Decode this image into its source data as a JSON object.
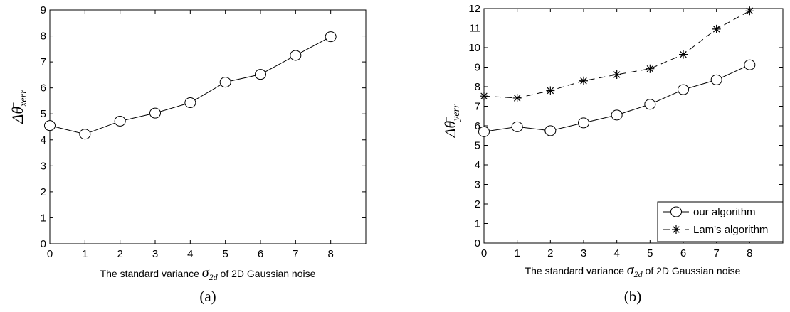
{
  "chart_data": [
    {
      "type": "line",
      "caption": "(a)",
      "xlabel": "The standard variance σ2d of 2D Gaussian noise",
      "ylabel": "Δθ̄xerr",
      "xlim": [
        0,
        9
      ],
      "ylim": [
        0,
        9
      ],
      "xticks": [
        0,
        1,
        2,
        3,
        4,
        5,
        6,
        7,
        8
      ],
      "yticks": [
        0,
        1,
        2,
        3,
        4,
        5,
        6,
        7,
        8,
        9
      ],
      "grid": false,
      "series": [
        {
          "marker": "circle",
          "line": "solid",
          "x": [
            0,
            1,
            2,
            3,
            4,
            5,
            6,
            7,
            8
          ],
          "y": [
            4.55,
            4.22,
            4.72,
            5.03,
            5.43,
            6.22,
            6.52,
            7.25,
            7.97
          ]
        }
      ]
    },
    {
      "type": "line",
      "caption": "(b)",
      "xlabel": "The standard variance σ2d of 2D Gaussian noise",
      "ylabel": "Δθ̄yerr",
      "xlim": [
        0,
        9
      ],
      "ylim": [
        0,
        12
      ],
      "xticks": [
        0,
        1,
        2,
        3,
        4,
        5,
        6,
        7,
        8
      ],
      "yticks": [
        0,
        1,
        2,
        3,
        4,
        5,
        6,
        7,
        8,
        9,
        10,
        11,
        12
      ],
      "grid": false,
      "legend_position": "bottom-right",
      "series": [
        {
          "name": "our algorithm",
          "marker": "circle",
          "line": "solid",
          "x": [
            0,
            1,
            2,
            3,
            4,
            5,
            6,
            7,
            8
          ],
          "y": [
            5.7,
            5.95,
            5.75,
            6.15,
            6.55,
            7.1,
            7.85,
            8.35,
            9.12
          ]
        },
        {
          "name": "Lam's algorithm",
          "marker": "star",
          "line": "dashed",
          "x": [
            0,
            1,
            2,
            3,
            4,
            5,
            6,
            7,
            8
          ],
          "y": [
            7.52,
            7.42,
            7.8,
            8.3,
            8.62,
            8.92,
            9.65,
            10.95,
            11.88
          ]
        }
      ]
    }
  ],
  "labels": {
    "xlabel_prefix": "The standard variance",
    "xlabel_sigma": "σ",
    "xlabel_sub": "2d",
    "xlabel_suffix": "of 2D Gaussian noise",
    "ylabel_a_main": "Δθ̄",
    "ylabel_a_sub": "xerr",
    "ylabel_b_main": "Δθ̄",
    "ylabel_b_sub": "yerr"
  }
}
